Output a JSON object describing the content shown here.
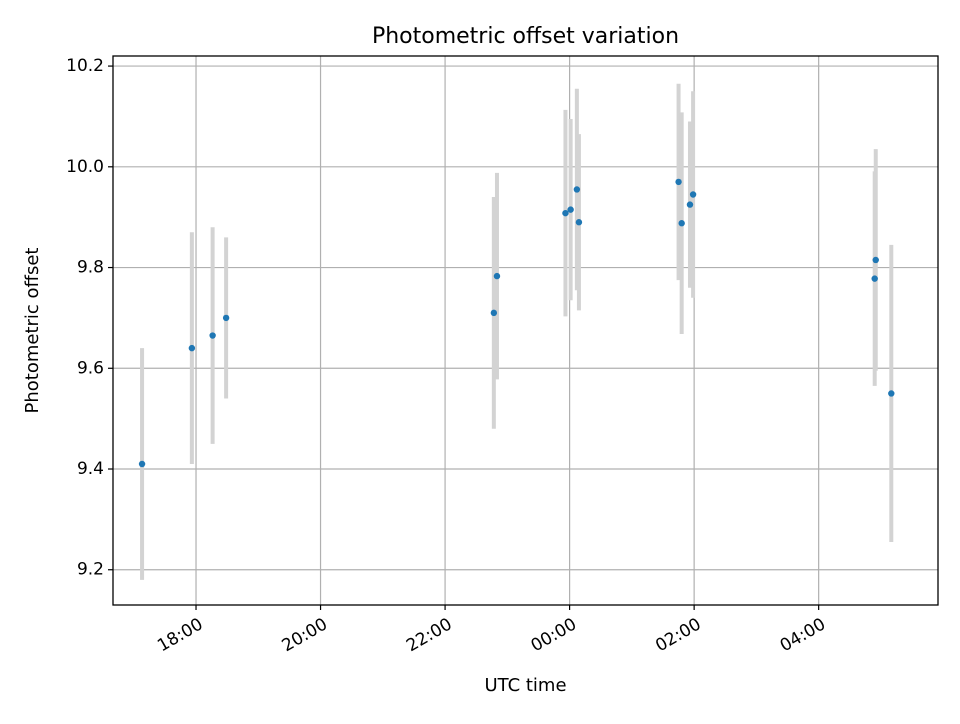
{
  "chart_data": {
    "type": "scatter",
    "title": "Photometric offset variation",
    "xlabel": "UTC time",
    "ylabel": "Photometric offset",
    "x_axis_type": "time",
    "xlim": [
      "2023-01-01T16:40",
      "2023-01-02T05:55"
    ],
    "ylim": [
      9.13,
      10.22
    ],
    "x_ticks": [
      {
        "value": "2023-01-01T18:00",
        "label": "18:00"
      },
      {
        "value": "2023-01-01T20:00",
        "label": "20:00"
      },
      {
        "value": "2023-01-01T22:00",
        "label": "22:00"
      },
      {
        "value": "2023-01-02T00:00",
        "label": "00:00"
      },
      {
        "value": "2023-01-02T02:00",
        "label": "02:00"
      },
      {
        "value": "2023-01-02T04:00",
        "label": "04:00"
      }
    ],
    "y_ticks": [
      9.2,
      9.4,
      9.6,
      9.8,
      10.0,
      10.2
    ],
    "y_tick_labels": [
      "9.2",
      "9.4",
      "9.6",
      "9.8",
      "10.0",
      "10.2"
    ],
    "grid": true,
    "series": [
      {
        "marker_color": "#1f77b4",
        "error_bar_color": "#d3d3d3",
        "points": [
          {
            "x": "2023-01-01T17:08",
            "y": 9.41,
            "yerr": 0.23
          },
          {
            "x": "2023-01-01T17:56",
            "y": 9.64,
            "yerr": 0.23
          },
          {
            "x": "2023-01-01T18:16",
            "y": 9.665,
            "yerr": 0.215
          },
          {
            "x": "2023-01-01T18:29",
            "y": 9.7,
            "yerr": 0.16
          },
          {
            "x": "2023-01-01T22:47",
            "y": 9.71,
            "yerr": 0.23
          },
          {
            "x": "2023-01-01T22:50",
            "y": 9.783,
            "yerr": 0.205
          },
          {
            "x": "2023-01-01T23:56",
            "y": 9.908,
            "yerr": 0.205
          },
          {
            "x": "2023-01-02T00:01",
            "y": 9.915,
            "yerr": 0.18
          },
          {
            "x": "2023-01-02T00:07",
            "y": 9.955,
            "yerr": 0.2
          },
          {
            "x": "2023-01-02T00:09",
            "y": 9.89,
            "yerr": 0.175
          },
          {
            "x": "2023-01-02T01:45",
            "y": 9.97,
            "yerr": 0.195
          },
          {
            "x": "2023-01-02T01:48",
            "y": 9.888,
            "yerr": 0.22
          },
          {
            "x": "2023-01-02T01:56",
            "y": 9.925,
            "yerr": 0.165
          },
          {
            "x": "2023-01-02T01:59",
            "y": 9.945,
            "yerr": 0.205
          },
          {
            "x": "2023-01-02T04:54",
            "y": 9.778,
            "yerr": 0.213
          },
          {
            "x": "2023-01-02T04:55",
            "y": 9.815,
            "yerr": 0.22
          },
          {
            "x": "2023-01-02T05:10",
            "y": 9.55,
            "yerr": 0.295
          }
        ]
      }
    ]
  }
}
